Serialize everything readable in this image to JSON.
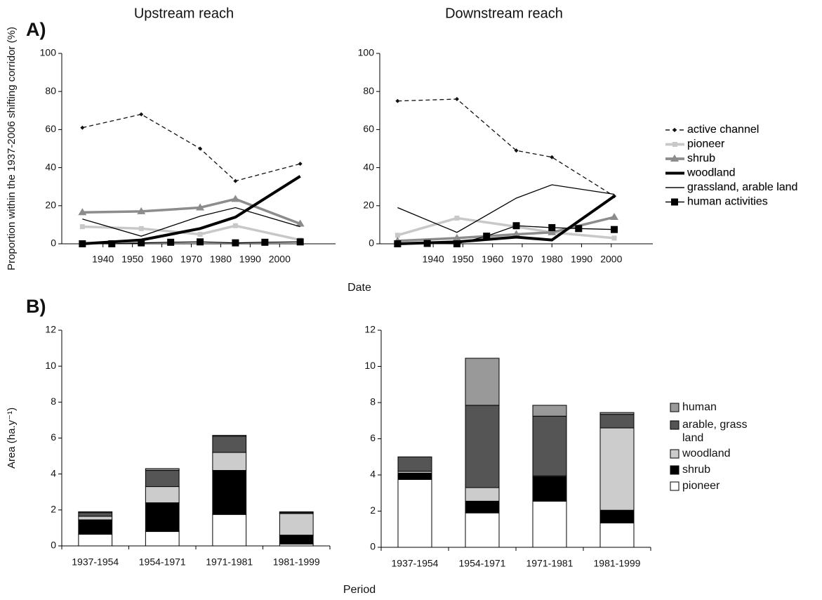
{
  "chart_data": [
    {
      "type": "line",
      "title": "Upstream reach",
      "panel_label": "A)",
      "ylabel": "Proportion within the 1937-2006 shifting corridor (%)",
      "xlabel": "Date",
      "x": [
        1933,
        1953,
        1973,
        1985,
        2007
      ],
      "xlim": [
        1926,
        2019
      ],
      "xticks": [
        1940,
        1950,
        1960,
        1970,
        1980,
        1990,
        2000
      ],
      "ylim": [
        0,
        100
      ],
      "yticks": [
        0,
        20,
        40,
        60,
        80,
        100
      ],
      "series": [
        {
          "name": "active channel",
          "color": "#111111",
          "line_style": "dashed",
          "marker": "diamond",
          "values": [
            61,
            68,
            50,
            33,
            42
          ]
        },
        {
          "name": "pioneer",
          "color": "#c8c8c8",
          "line_style": "thick",
          "marker": "square",
          "values": [
            9,
            8,
            5,
            9.5,
            2
          ]
        },
        {
          "name": "shrub",
          "color": "#8c8c8c",
          "line_style": "thick",
          "marker": "triangle",
          "values": [
            16.5,
            17,
            19,
            23.5,
            10.5
          ]
        },
        {
          "name": "woodland",
          "color": "#000000",
          "line_style": "heavy",
          "marker": "none",
          "values": [
            0,
            2,
            8,
            14,
            35.5
          ]
        },
        {
          "name": "grassland, arable land",
          "color": "#000000",
          "line_style": "thin",
          "marker": "none",
          "values": [
            13,
            4,
            14.5,
            19,
            9
          ]
        },
        {
          "name": "human activities",
          "color": "#000000",
          "line_style": "thin",
          "marker": "bigsquare",
          "x": [
            1933,
            1943,
            1953,
            1963,
            1973,
            1985,
            1995,
            2007
          ],
          "values": [
            0,
            0,
            0.5,
            0.8,
            1,
            0.5,
            0.8,
            1
          ]
        }
      ]
    },
    {
      "type": "line",
      "title": "Downstream reach",
      "x": [
        1928,
        1948,
        1968,
        1980,
        2001
      ],
      "xlim": [
        1922,
        2014
      ],
      "xticks": [
        1940,
        1950,
        1960,
        1970,
        1980,
        1990,
        2000
      ],
      "ylim": [
        0,
        100
      ],
      "yticks": [
        0,
        20,
        40,
        60,
        80,
        100
      ],
      "series": [
        {
          "name": "active channel",
          "color": "#111111",
          "line_style": "dashed",
          "marker": "diamond",
          "values": [
            75,
            76,
            49,
            45.5,
            25
          ]
        },
        {
          "name": "pioneer",
          "color": "#c8c8c8",
          "line_style": "thick",
          "marker": "square",
          "values": [
            4.5,
            13.5,
            9,
            6,
            3
          ]
        },
        {
          "name": "shrub",
          "color": "#8c8c8c",
          "line_style": "thick",
          "marker": "triangle",
          "values": [
            1.5,
            3,
            5,
            6,
            14
          ]
        },
        {
          "name": "woodland",
          "color": "#000000",
          "line_style": "heavy",
          "marker": "none",
          "values": [
            0,
            1,
            3.5,
            2,
            25
          ]
        },
        {
          "name": "grassland, arable land",
          "color": "#000000",
          "line_style": "thin",
          "marker": "none",
          "values": [
            19,
            6,
            24,
            31,
            26
          ]
        },
        {
          "name": "human activities",
          "color": "#000000",
          "line_style": "thin",
          "marker": "bigsquare",
          "x": [
            1928,
            1938,
            1948,
            1958,
            1968,
            1980,
            1989,
            2001
          ],
          "values": [
            0,
            0.2,
            0,
            4,
            9.5,
            8.5,
            8,
            7.5
          ]
        }
      ]
    },
    {
      "type": "stacked_bar",
      "panel_label": "B)",
      "ylabel": "Area (ha.y⁻¹)",
      "xlabel": "Period",
      "categories": [
        "1937-1954",
        "1954-1971",
        "1971-1981",
        "1981-1999"
      ],
      "ylim": [
        0,
        12
      ],
      "yticks": [
        0,
        2,
        4,
        6,
        8,
        10,
        12
      ],
      "series": [
        {
          "name": "pioneer",
          "color": "#ffffff",
          "values": [
            0.65,
            0.8,
            1.75,
            0.1
          ]
        },
        {
          "name": "shrub",
          "color": "#000000",
          "values": [
            0.8,
            1.6,
            2.45,
            0.5
          ]
        },
        {
          "name": "woodland",
          "color": "#cccccc",
          "values": [
            0.2,
            0.9,
            1.0,
            1.2
          ]
        },
        {
          "name": "arable, grass land",
          "color": "#555555",
          "values": [
            0.2,
            0.9,
            0.9,
            0.05
          ]
        },
        {
          "name": "human",
          "color": "#999999",
          "values": [
            0.05,
            0.1,
            0.05,
            0.05
          ]
        }
      ]
    },
    {
      "type": "stacked_bar",
      "categories": [
        "1937-1954",
        "1954-1971",
        "1971-1981",
        "1981-1999"
      ],
      "ylim": [
        0,
        12
      ],
      "yticks": [
        0,
        2,
        4,
        6,
        8,
        10,
        12
      ],
      "series": [
        {
          "name": "pioneer",
          "color": "#ffffff",
          "values": [
            3.75,
            1.9,
            2.55,
            1.35
          ]
        },
        {
          "name": "shrub",
          "color": "#000000",
          "values": [
            0.35,
            0.65,
            1.35,
            0.7
          ]
        },
        {
          "name": "woodland",
          "color": "#cccccc",
          "values": [
            0.1,
            0.75,
            0.05,
            4.55
          ]
        },
        {
          "name": "arable, grass land",
          "color": "#555555",
          "values": [
            0.8,
            4.55,
            3.3,
            0.75
          ]
        },
        {
          "name": "human",
          "color": "#999999",
          "values": [
            0,
            2.6,
            0.6,
            0.1
          ]
        }
      ]
    }
  ]
}
